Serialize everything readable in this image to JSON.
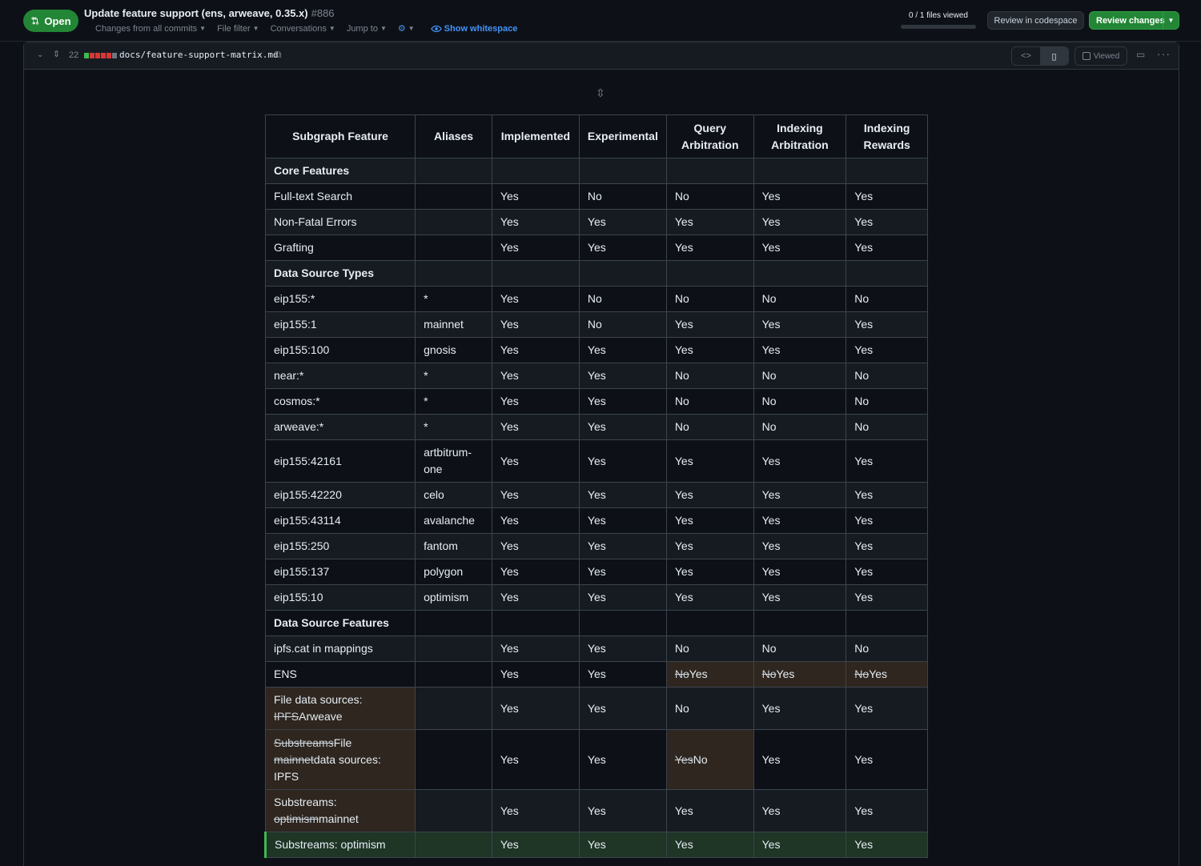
{
  "pr": {
    "state": "Open",
    "title": "Update feature support (ens, arweave, 0.35.x)",
    "number": "#886",
    "subnav": {
      "changes": "Changes from all commits",
      "file_filter": "File filter",
      "conversations": "Conversations",
      "jump_to": "Jump to",
      "show_whitespace": "Show whitespace"
    },
    "files_viewed": "0 / 1 files viewed",
    "files_viewed_fraction": 0,
    "review_codespace": "Review in codespace",
    "review_changes": "Review changes"
  },
  "file": {
    "change_count": "22",
    "path": "docs/feature-support-matrix.md",
    "viewed_label": "Viewed",
    "diff_bar_colors": [
      "#3fb950",
      "#da3633",
      "#da3633",
      "#da3633",
      "#da3633",
      "#6e7681"
    ]
  },
  "colors": {
    "accent": "#238636",
    "link": "#4493f8",
    "changed_cell": "#2e261f",
    "added_row": "#1f3526"
  },
  "table": {
    "headers": [
      "Subgraph Feature",
      "Aliases",
      "Implemented",
      "Experimental",
      "Query Arbitration",
      "Indexing Arbitration",
      "Indexing Rewards"
    ],
    "rows": [
      {
        "section": "Core Features"
      },
      {
        "cells": [
          "Full-text Search",
          "",
          "Yes",
          "No",
          "No",
          "Yes",
          "Yes"
        ]
      },
      {
        "cells": [
          "Non-Fatal Errors",
          "",
          "Yes",
          "Yes",
          "Yes",
          "Yes",
          "Yes"
        ]
      },
      {
        "cells": [
          "Grafting",
          "",
          "Yes",
          "Yes",
          "Yes",
          "Yes",
          "Yes"
        ]
      },
      {
        "section": "Data Source Types"
      },
      {
        "cells": [
          "eip155:*",
          "*",
          "Yes",
          "No",
          "No",
          "No",
          "No"
        ]
      },
      {
        "cells": [
          "eip155:1",
          "mainnet",
          "Yes",
          "No",
          "Yes",
          "Yes",
          "Yes"
        ]
      },
      {
        "cells": [
          "eip155:100",
          "gnosis",
          "Yes",
          "Yes",
          "Yes",
          "Yes",
          "Yes"
        ]
      },
      {
        "cells": [
          "near:*",
          "*",
          "Yes",
          "Yes",
          "No",
          "No",
          "No"
        ]
      },
      {
        "cells": [
          "cosmos:*",
          "*",
          "Yes",
          "Yes",
          "No",
          "No",
          "No"
        ]
      },
      {
        "cells": [
          "arweave:*",
          "*",
          "Yes",
          "Yes",
          "No",
          "No",
          "No"
        ]
      },
      {
        "cells": [
          "eip155:42161",
          "artbitrum-one",
          "Yes",
          "Yes",
          "Yes",
          "Yes",
          "Yes"
        ]
      },
      {
        "cells": [
          "eip155:42220",
          "celo",
          "Yes",
          "Yes",
          "Yes",
          "Yes",
          "Yes"
        ]
      },
      {
        "cells": [
          "eip155:43114",
          "avalanche",
          "Yes",
          "Yes",
          "Yes",
          "Yes",
          "Yes"
        ]
      },
      {
        "cells": [
          "eip155:250",
          "fantom",
          "Yes",
          "Yes",
          "Yes",
          "Yes",
          "Yes"
        ]
      },
      {
        "cells": [
          "eip155:137",
          "polygon",
          "Yes",
          "Yes",
          "Yes",
          "Yes",
          "Yes"
        ]
      },
      {
        "cells": [
          "eip155:10",
          "optimism",
          "Yes",
          "Yes",
          "Yes",
          "Yes",
          "Yes"
        ]
      },
      {
        "section": "Data Source Features"
      },
      {
        "cells": [
          "ipfs.cat in mappings",
          "",
          "Yes",
          "Yes",
          "No",
          "No",
          "No"
        ]
      },
      {
        "cells": [
          "ENS",
          "",
          "Yes",
          "Yes",
          {
            "del": "No",
            "ins": "Yes"
          },
          {
            "del": "No",
            "ins": "Yes"
          },
          {
            "del": "No",
            "ins": "Yes"
          }
        ]
      },
      {
        "cells": [
          {
            "pre": "File data sources: ",
            "del": "IPFS",
            "ins": "Arweave"
          },
          "",
          "Yes",
          "Yes",
          "No",
          "Yes",
          "Yes"
        ]
      },
      {
        "cells": [
          {
            "segments": [
              {
                "del": "Substreams"
              },
              {
                "ins": "File "
              },
              {
                "del": "mainnet"
              },
              {
                "ins": "data sources: IPFS"
              }
            ]
          },
          "",
          "Yes",
          "Yes",
          {
            "del": "Yes",
            "ins": "No"
          },
          "Yes",
          "Yes"
        ]
      },
      {
        "cells": [
          {
            "pre": "Substreams: ",
            "del": "optimism",
            "ins": "mainnet"
          },
          "",
          "Yes",
          "Yes",
          "Yes",
          "Yes",
          "Yes"
        ]
      },
      {
        "added": true,
        "cells": [
          "Substreams: optimism",
          "",
          "Yes",
          "Yes",
          "Yes",
          "Yes",
          "Yes"
        ]
      }
    ]
  }
}
